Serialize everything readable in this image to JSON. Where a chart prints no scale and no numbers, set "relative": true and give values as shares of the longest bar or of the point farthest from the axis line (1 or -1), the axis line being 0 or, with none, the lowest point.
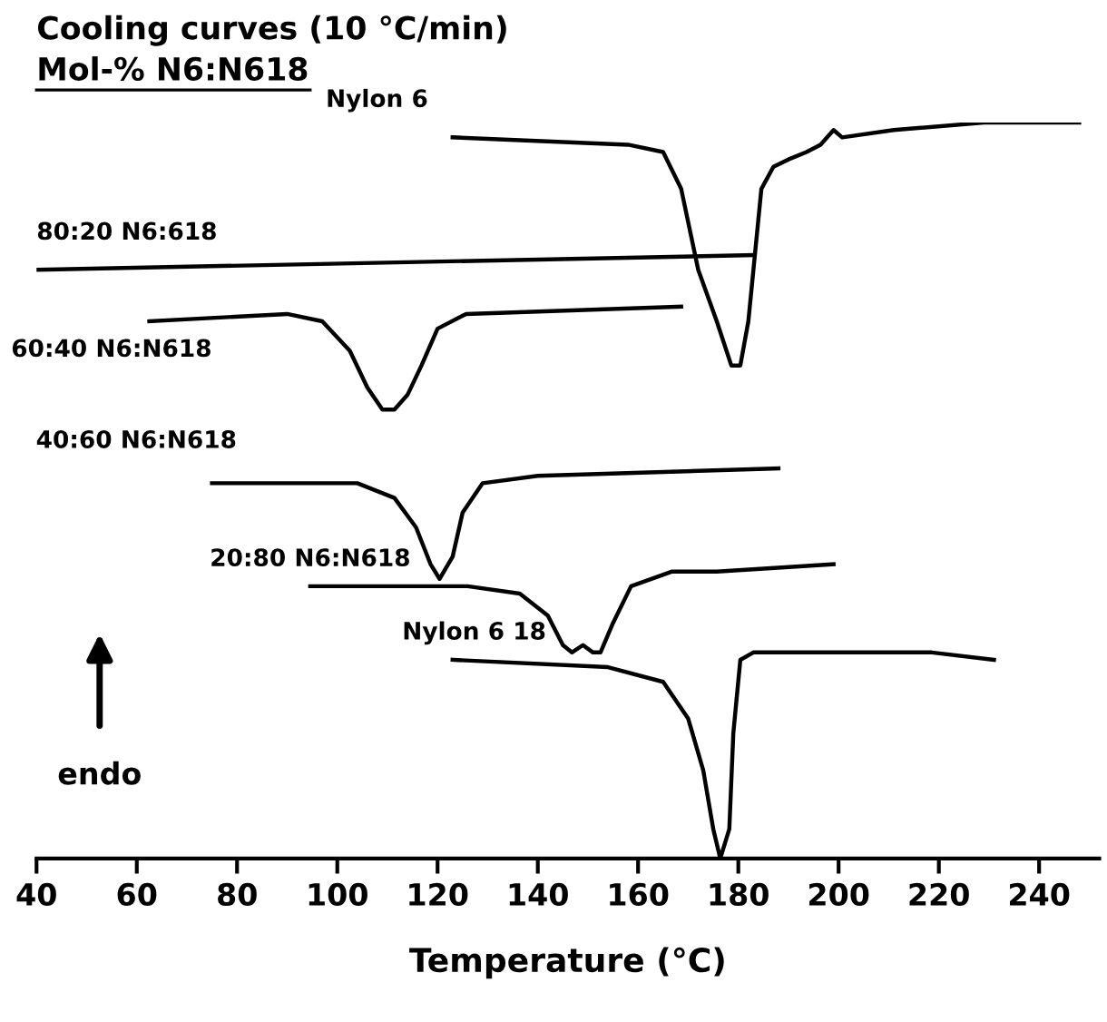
{
  "chart_data": {
    "type": "line",
    "title": "Cooling curves (10 °C/min)",
    "subtitle": "Mol-% N6:N618",
    "xlabel": "Temperature (°C)",
    "relative": true,
    "xlim": [
      40,
      252
    ],
    "xticks": [
      40,
      60,
      80,
      100,
      120,
      140,
      160,
      180,
      200,
      220,
      240
    ],
    "series": [
      {
        "name": "Nylon 6",
        "color": "#000000",
        "x": [
          123,
          158,
          165,
          168.6,
          172,
          175.7,
          178.6,
          180.4,
          182,
          184.6,
          187,
          190,
          193.6,
          196.4,
          199,
          200.7,
          211,
          229,
          248
        ],
        "values": [
          0.98,
          0.97,
          0.96,
          0.91,
          0.8,
          0.73,
          0.67,
          0.67,
          0.73,
          0.91,
          0.94,
          0.95,
          0.96,
          0.97,
          0.99,
          0.98,
          0.99,
          1.0,
          1.0
        ]
      },
      {
        "name": "80:20 N6:618",
        "color": "#000000",
        "x": [
          40,
          183
        ],
        "values": [
          0.8,
          0.82
        ]
      },
      {
        "name": "60:40 N6:N618",
        "color": "#000000",
        "x": [
          62.5,
          90,
          97,
          102.5,
          106,
          109,
          111.4,
          114,
          116.8,
          120,
          125.7,
          168.6
        ],
        "values": [
          0.73,
          0.74,
          0.73,
          0.69,
          0.64,
          0.61,
          0.61,
          0.63,
          0.67,
          0.72,
          0.74,
          0.75
        ]
      },
      {
        "name": "40:60 N6:N618",
        "color": "#000000",
        "x": [
          75,
          104,
          111.4,
          115.7,
          118.6,
          120.4,
          123,
          125,
          129,
          140,
          188
        ],
        "values": [
          0.51,
          0.51,
          0.49,
          0.45,
          0.4,
          0.38,
          0.41,
          0.47,
          0.51,
          0.52,
          0.53
        ]
      },
      {
        "name": "20:80 N6:N618",
        "color": "#000000",
        "x": [
          94.6,
          126,
          136.4,
          142,
          145,
          146.8,
          149,
          151,
          152.5,
          155,
          158.6,
          166.8,
          175.7,
          199
        ],
        "values": [
          0.37,
          0.37,
          0.36,
          0.33,
          0.29,
          0.28,
          0.29,
          0.28,
          0.28,
          0.32,
          0.37,
          0.39,
          0.39,
          0.4
        ]
      },
      {
        "name": "Nylon 6 18",
        "color": "#000000",
        "x": [
          123,
          154,
          165,
          170,
          173,
          175,
          176.4,
          178.2,
          179,
          180.4,
          183,
          218.6,
          231
        ],
        "values": [
          0.27,
          0.26,
          0.24,
          0.19,
          0.12,
          0.04,
          0.0,
          0.04,
          0.17,
          0.27,
          0.28,
          0.28,
          0.27
        ]
      }
    ],
    "annotations": [
      "endo"
    ],
    "legend": false,
    "grid": false,
    "marker": "none",
    "line_style": "solid"
  }
}
